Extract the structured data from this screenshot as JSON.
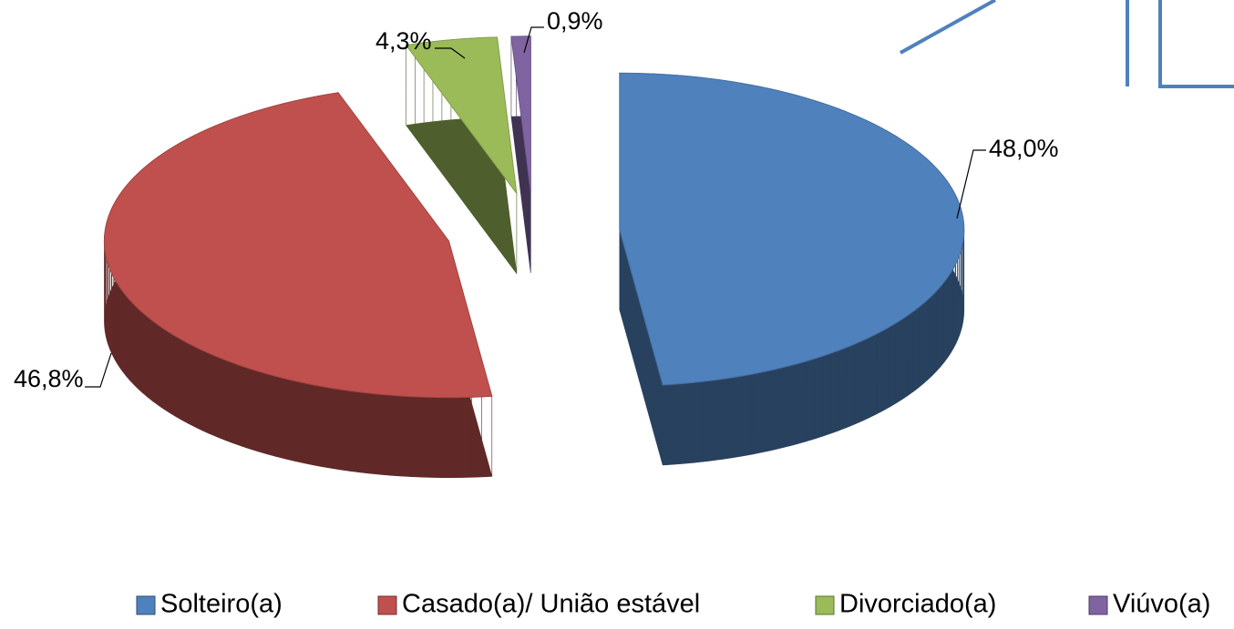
{
  "chart_data": {
    "type": "pie",
    "categories": [
      "Solteiro(a)",
      "Casado(a)/ União estável",
      "Divorciado(a)",
      "Viúvo(a)"
    ],
    "values": [
      48.0,
      46.8,
      4.3,
      0.9
    ],
    "value_labels": [
      "48,0%",
      "46,8%",
      "4,3%",
      "0,9%"
    ],
    "colors": [
      "#4f81bd",
      "#c0504d",
      "#9bbb59",
      "#8064a2"
    ],
    "legend": "bottom"
  }
}
